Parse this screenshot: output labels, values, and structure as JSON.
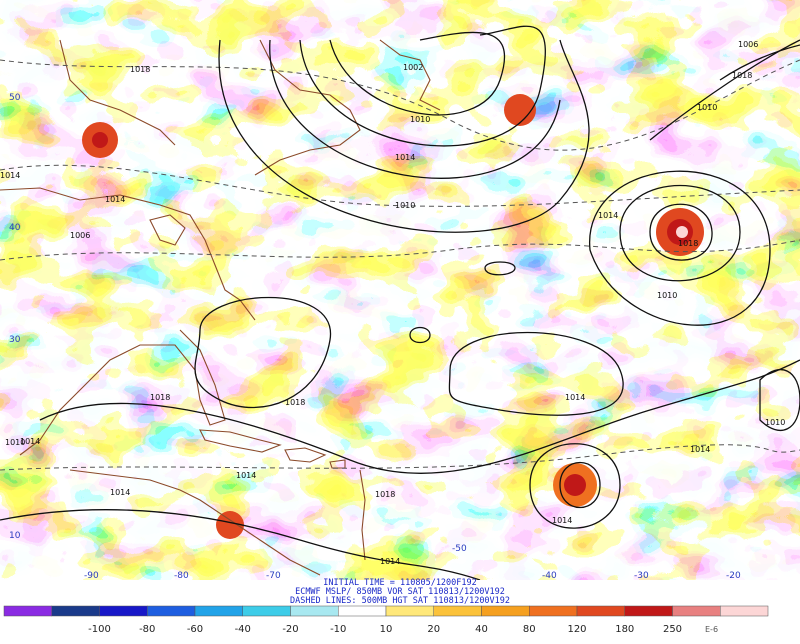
{
  "map": {
    "lat_labels": [
      "50",
      "40",
      "30",
      "10"
    ],
    "lon_labels": [
      "-90",
      "-80",
      "-70",
      "-50",
      "-40",
      "-30",
      "-20"
    ],
    "isobar_labels": [
      "1018",
      "1002",
      "1006",
      "1010",
      "1014",
      "1010",
      "1018",
      "1014",
      "1006",
      "1010",
      "1014",
      "1018",
      "1010",
      "1014",
      "1018",
      "1010",
      "1014",
      "1014",
      "1018",
      "1014",
      "1014",
      "1010",
      "1014",
      "1014",
      "1018",
      "1014"
    ],
    "colors": {
      "coastline": "#8b4a2a",
      "isobar": "#111111",
      "height_contour": "#555555"
    }
  },
  "caption": {
    "line1": "INITIAL TIME = 110805/1200F192",
    "line2": "ECMWF MSLP/ 850MB VOR SAT 110813/1200V192",
    "line3": "DASHED LINES: 500MB HGT SAT 110813/1200V192"
  },
  "colorbar": {
    "ticks": [
      "-100",
      "-80",
      "-60",
      "-40",
      "-20",
      "-10",
      "10",
      "20",
      "40",
      "80",
      "120",
      "180",
      "250"
    ],
    "unit": "E-6",
    "colors": [
      "#8a2be2",
      "#1a3a8a",
      "#1818c8",
      "#1e5ee0",
      "#22a3e8",
      "#3dcce8",
      "#a8e8f0",
      "#ffffff",
      "#ffe87a",
      "#fbc23a",
      "#f5a020",
      "#ef7020",
      "#e04820",
      "#c01818",
      "#e88080",
      "#fcd6d6"
    ]
  }
}
